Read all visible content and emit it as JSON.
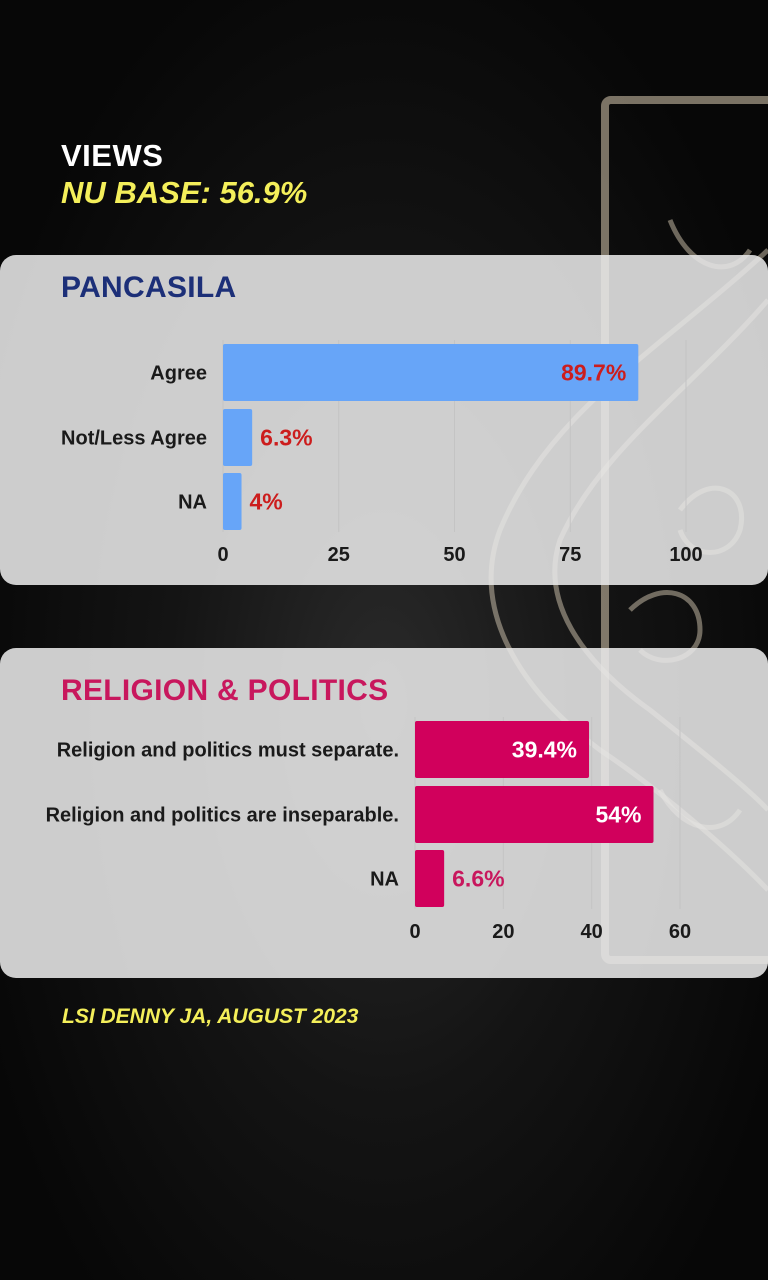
{
  "header": {
    "title": "VIEWS",
    "subtitle": "NU BASE: 56.9%"
  },
  "chart_data": [
    {
      "type": "bar",
      "orientation": "horizontal",
      "title": "PANCASILA",
      "categories": [
        "Agree",
        "Not/Less Agree",
        "NA"
      ],
      "values": [
        89.7,
        6.3,
        4
      ],
      "value_labels": [
        "89.7%",
        "6.3%",
        "4%"
      ],
      "xlim": [
        0,
        100
      ],
      "xticks": [
        "0",
        "25",
        "50",
        "75",
        "100"
      ],
      "bar_color": "#67a5f8",
      "label_color": "#cc1d1d",
      "grid": true
    },
    {
      "type": "bar",
      "orientation": "horizontal",
      "title": "RELIGION & POLITICS",
      "categories": [
        "Religion and politics must separate.",
        "Religion and politics are inseparable.",
        "NA"
      ],
      "values": [
        39.4,
        54,
        6.6
      ],
      "value_labels": [
        "39.4%",
        "54%",
        "6.6%"
      ],
      "xlim": [
        0,
        60
      ],
      "xticks": [
        "0",
        "20",
        "40",
        "60"
      ],
      "bar_color": "#d1005c",
      "label_color": "#c8175d",
      "grid": true
    }
  ],
  "footer": {
    "source": "LSI DENNY JA, AUGUST 2023"
  }
}
